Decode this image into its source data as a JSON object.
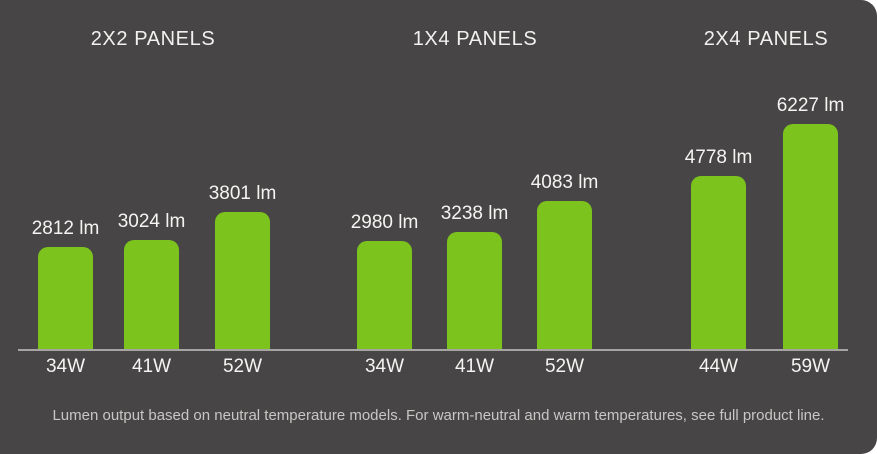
{
  "card": {
    "background_color": "#474545",
    "accent_green": "#7cc31e",
    "footer": "Lumen output based on neutral temperature models. For warm-neutral and warm temperatures, see full product line."
  },
  "chart_data": {
    "type": "bar",
    "title": "",
    "unit": "lm",
    "bar_color": "#7cc31e",
    "ylim": [
      0,
      6500
    ],
    "grid": false,
    "legend": false,
    "groups": [
      {
        "label": "2X2 PANELS",
        "categories": [
          "34W",
          "41W",
          "52W"
        ],
        "values": [
          2812,
          3024,
          3801
        ],
        "value_labels": [
          "2812 lm",
          "3024 lm",
          "3801 lm"
        ]
      },
      {
        "label": "1X4 PANELS",
        "categories": [
          "34W",
          "41W",
          "52W"
        ],
        "values": [
          2980,
          3238,
          4083
        ],
        "value_labels": [
          "2980 lm",
          "3238 lm",
          "4083 lm"
        ]
      },
      {
        "label": "2X4 PANELS",
        "categories": [
          "44W",
          "59W"
        ],
        "values": [
          4778,
          6227
        ],
        "value_labels": [
          "4778 lm",
          "6227 lm"
        ]
      }
    ]
  }
}
